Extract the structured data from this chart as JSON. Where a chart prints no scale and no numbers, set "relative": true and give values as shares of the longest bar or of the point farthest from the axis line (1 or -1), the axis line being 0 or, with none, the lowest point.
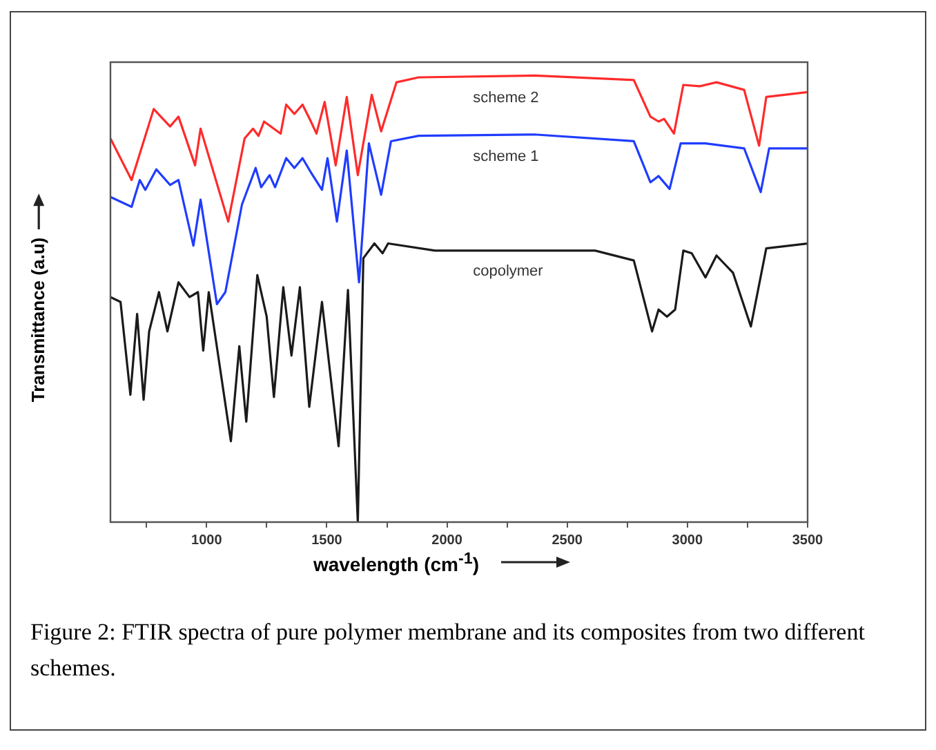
{
  "chart_data": {
    "type": "line",
    "relative": true,
    "xlabel": "wavelength (cm$^{-1}$)",
    "ylabel": "Transmittance (a.u)",
    "xlim": [
      600,
      3500
    ],
    "xticks": [
      {
        "value": 750,
        "label": null
      },
      1000,
      {
        "value": 1250,
        "label": null
      },
      1500,
      {
        "value": 1750,
        "label": null
      },
      2000,
      {
        "value": 2250,
        "label": null
      },
      2500,
      {
        "value": 2750,
        "label": null
      },
      3000,
      {
        "value": 3250,
        "label": null
      },
      3500
    ],
    "grid": false,
    "legend": false,
    "marker": "none",
    "line_style": "solid",
    "annotations": [
      "Figure 2: FTIR spectra of pure polymer membrane and its composites from two different schemes."
    ],
    "series": [
      {
        "name": "scheme 2",
        "color": "#ff2a2a",
        "x": [
          600,
          688,
          780,
          848,
          883,
          952,
          975,
          1090,
          1158,
          1193,
          1216,
          1239,
          1308,
          1331,
          1365,
          1399,
          1434,
          1457,
          1491,
          1537,
          1583,
          1629,
          1687,
          1726,
          1790,
          1882,
          2364,
          2777,
          2846,
          2880,
          2903,
          2944,
          2983,
          3052,
          3121,
          3236,
          3298,
          3328,
          3500
        ],
        "values": [
          0.859,
          0.766,
          0.925,
          0.886,
          0.908,
          0.799,
          0.881,
          0.673,
          0.859,
          0.881,
          0.865,
          0.897,
          0.87,
          0.935,
          0.914,
          0.935,
          0.897,
          0.87,
          0.941,
          0.799,
          0.952,
          0.777,
          0.957,
          0.875,
          0.985,
          0.996,
          1.0,
          0.99,
          0.908,
          0.897,
          0.903,
          0.87,
          0.979,
          0.976,
          0.985,
          0.968,
          0.843,
          0.952,
          0.963
        ]
      },
      {
        "name": "scheme 1",
        "color": "#1f3cff",
        "x": [
          600,
          688,
          722,
          745,
          791,
          848,
          883,
          945,
          975,
          1043,
          1078,
          1147,
          1204,
          1227,
          1262,
          1285,
          1331,
          1365,
          1399,
          1434,
          1480,
          1503,
          1542,
          1583,
          1634,
          1675,
          1726,
          1767,
          1882,
          2364,
          2777,
          2846,
          2880,
          2926,
          2972,
          3075,
          3236,
          3305,
          3340,
          3500
        ],
        "values": [
          0.728,
          0.706,
          0.766,
          0.744,
          0.79,
          0.755,
          0.766,
          0.619,
          0.722,
          0.488,
          0.515,
          0.711,
          0.793,
          0.75,
          0.777,
          0.75,
          0.815,
          0.793,
          0.815,
          0.783,
          0.744,
          0.815,
          0.673,
          0.832,
          0.537,
          0.848,
          0.733,
          0.853,
          0.865,
          0.868,
          0.853,
          0.761,
          0.775,
          0.746,
          0.848,
          0.848,
          0.837,
          0.739,
          0.837,
          0.837
        ]
      },
      {
        "name": "copolymer",
        "color": "#1a1a1a",
        "x": [
          600,
          642,
          683,
          711,
          738,
          761,
          802,
          837,
          883,
          929,
          964,
          986,
          1009,
          1101,
          1136,
          1165,
          1211,
          1250,
          1280,
          1319,
          1353,
          1388,
          1427,
          1480,
          1549,
          1588,
          1629,
          1652,
          1698,
          1732,
          1755,
          1950,
          2616,
          2777,
          2853,
          2880,
          2915,
          2949,
          2983,
          3018,
          3075,
          3121,
          3190,
          3264,
          3328,
          3500
        ],
        "values": [
          0.504,
          0.493,
          0.285,
          0.466,
          0.274,
          0.427,
          0.515,
          0.427,
          0.537,
          0.504,
          0.515,
          0.384,
          0.515,
          0.181,
          0.394,
          0.225,
          0.553,
          0.46,
          0.28,
          0.526,
          0.373,
          0.526,
          0.258,
          0.493,
          0.17,
          0.52,
          0.0,
          0.591,
          0.624,
          0.602,
          0.624,
          0.608,
          0.608,
          0.586,
          0.427,
          0.476,
          0.46,
          0.476,
          0.608,
          0.602,
          0.548,
          0.597,
          0.558,
          0.438,
          0.613,
          0.624
        ]
      }
    ]
  }
}
